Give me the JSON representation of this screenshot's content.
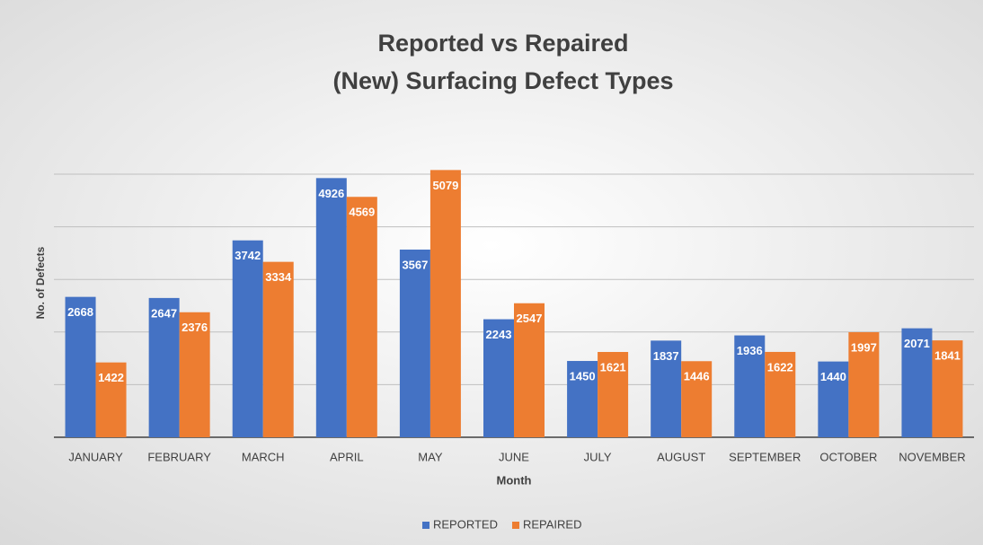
{
  "chart_data": {
    "type": "bar",
    "title": [
      "Reported vs Repaired",
      "(New) Surfacing Defect Types"
    ],
    "x_label": "Month",
    "y_label": "No. of Defects",
    "categories": [
      "JANUARY",
      "FEBRUARY",
      "MARCH",
      "APRIL",
      "MAY",
      "JUNE",
      "JULY",
      "AUGUST",
      "SEPTEMBER",
      "OCTOBER",
      "NOVEMBER"
    ],
    "series": [
      {
        "name": "REPORTED",
        "color": "#4472c4",
        "values": [
          2668,
          2647,
          3742,
          4926,
          3567,
          2243,
          1450,
          1837,
          1936,
          1440,
          2071
        ]
      },
      {
        "name": "REPAIRED",
        "color": "#ed7d31",
        "values": [
          1422,
          2376,
          3334,
          4569,
          5079,
          2547,
          1621,
          1446,
          1622,
          1997,
          1841
        ]
      }
    ],
    "ylim": [
      0,
      5000
    ],
    "yticks": [
      0,
      1000,
      2000,
      3000,
      4000,
      5000
    ],
    "show_ytick_labels": false,
    "grid": true,
    "legend": "bottom"
  }
}
